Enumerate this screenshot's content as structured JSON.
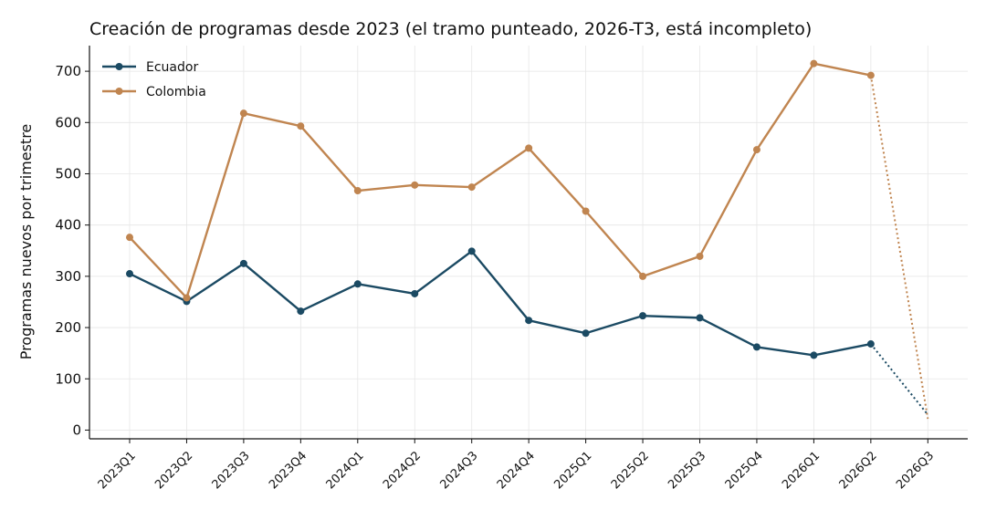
{
  "chart_data": {
    "type": "line",
    "title": "Creación de programas desde 2023 (el tramo punteado, 2026-T3, está incompleto)",
    "xlabel": "",
    "ylabel": "Programas nuevos por trimestre",
    "categories": [
      "2023Q1",
      "2023Q2",
      "2023Q3",
      "2023Q4",
      "2024Q1",
      "2024Q2",
      "2024Q3",
      "2024Q4",
      "2025Q1",
      "2025Q2",
      "2025Q3",
      "2025Q4",
      "2026Q1",
      "2026Q2",
      "2026Q3"
    ],
    "yticks": [
      0,
      100,
      200,
      300,
      400,
      500,
      600,
      700
    ],
    "ylim": [
      -17,
      750
    ],
    "grid": true,
    "legend_position": "top-left",
    "incomplete_category": "2026Q3",
    "series": [
      {
        "name": "Ecuador",
        "color": "#1b4a63",
        "values": [
          305,
          251,
          325,
          232,
          285,
          266,
          349,
          214,
          189,
          223,
          219,
          162,
          146,
          168,
          30
        ]
      },
      {
        "name": "Colombia",
        "color": "#c08550",
        "values": [
          376,
          258,
          618,
          593,
          467,
          478,
          474,
          550,
          427,
          300,
          339,
          547,
          715,
          692,
          22
        ]
      }
    ]
  }
}
